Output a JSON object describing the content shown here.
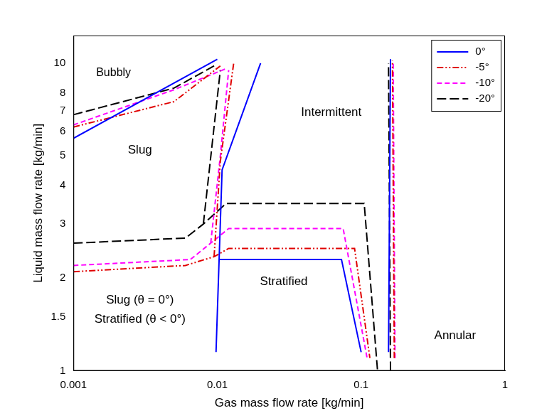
{
  "chart_data": {
    "type": "line",
    "x_label": "Gas mass flow rate [kg/min]",
    "y_label": "Liquid mass flow rate [kg/min]",
    "log": true,
    "grid": false,
    "legend": "top-right",
    "xlim": [
      0.001,
      1
    ],
    "ylim": [
      1,
      12.3
    ],
    "xticks": [
      0.001,
      0.01,
      0.1,
      1
    ],
    "yticks": [
      1,
      1.5,
      2,
      3,
      4,
      5,
      6,
      7,
      8,
      10
    ],
    "annotations": [
      "Bubbly",
      "Slug",
      "Intermittent",
      "Stratified",
      "Slug (θ = 0°)",
      "Stratified (θ < 0°)",
      "Annular"
    ],
    "series": [
      {
        "name": "0°",
        "color": "#0000ff",
        "line_style": "solid",
        "x": [
          0.001,
          0.01,
          null,
          0.0098,
          0.0108,
          0.02,
          null,
          0.0103,
          0.073,
          0.1,
          null,
          0.155,
          0.16
        ],
        "values": [
          5.7,
          10.3,
          null,
          1.15,
          4.5,
          10,
          null,
          2.3,
          2.3,
          1.15,
          null,
          1.15,
          10.3
        ]
      },
      {
        "name": "-5°",
        "color": "#e00000",
        "line_style": "dashdotdot",
        "x": [
          0.001,
          0.005,
          0.0105,
          null,
          0.001,
          0.006,
          0.0095,
          0.012,
          0.09,
          0.115,
          null,
          0.0095,
          0.0105,
          0.013,
          null,
          0.17,
          0.165
        ],
        "values": [
          6.2,
          7.5,
          9.8,
          null,
          2.1,
          2.2,
          2.35,
          2.5,
          2.5,
          1.1,
          null,
          2.35,
          4.8,
          10,
          null,
          1.1,
          10.2
        ]
      },
      {
        "name": "-10°",
        "color": "#ff00ff",
        "line_style": "dashed",
        "x": [
          0.001,
          0.005,
          0.0115,
          null,
          0.001,
          0.0065,
          0.009,
          0.012,
          0.075,
          0.11,
          null,
          0.009,
          0.0105,
          0.012,
          null,
          0.172,
          0.167
        ],
        "values": [
          6.3,
          8.2,
          9.6,
          null,
          2.2,
          2.3,
          2.6,
          2.9,
          2.9,
          1.1,
          null,
          2.6,
          5,
          9.5,
          null,
          1.1,
          10
        ]
      },
      {
        "name": "-20°",
        "color": "#000000",
        "line_style": "longdash",
        "x": [
          0.001,
          0.005,
          0.0095,
          null,
          0.001,
          0.006,
          0.008,
          0.0115,
          0.105,
          0.13,
          null,
          0.008,
          0.0105,
          null,
          0.16,
          0.155
        ],
        "values": [
          6.8,
          8.3,
          9.8,
          null,
          2.6,
          2.7,
          3.0,
          3.5,
          3.5,
          1.0,
          null,
          3.0,
          9.5,
          null,
          1.0,
          10
        ]
      }
    ]
  }
}
